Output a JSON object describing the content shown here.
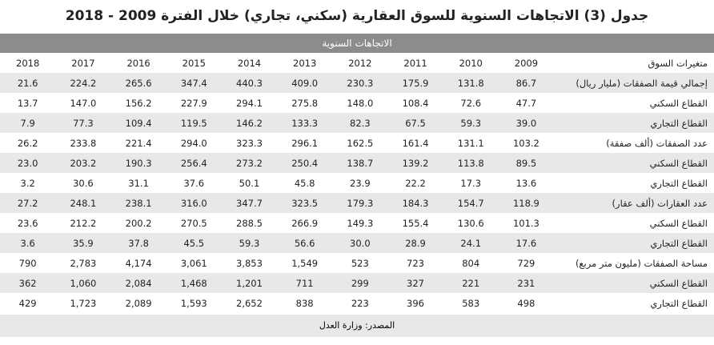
{
  "header": {
    "title": "جدول (3) الاتجاهات السنوية للسوق العقارية (سكني، تجاري) خلال الفترة 2009 - 2018",
    "band": "الاتجاهات السنوية"
  },
  "table": {
    "corner": "متغيرات السوق",
    "columns": [
      "2009",
      "2010",
      "2011",
      "2012",
      "2013",
      "2014",
      "2015",
      "2016",
      "2017",
      "2018"
    ],
    "rows": [
      {
        "label": "إجمالي قيمة الصفقات (مليار ريال)",
        "values": [
          "86.7",
          "131.8",
          "175.9",
          "230.3",
          "409.0",
          "440.3",
          "347.4",
          "265.6",
          "224.2",
          "21.6"
        ]
      },
      {
        "label": "القطاع السكني",
        "values": [
          "47.7",
          "72.6",
          "108.4",
          "148.0",
          "275.8",
          "294.1",
          "227.9",
          "156.2",
          "147.0",
          "13.7"
        ]
      },
      {
        "label": "القطاع التجاري",
        "values": [
          "39.0",
          "59.3",
          "67.5",
          "82.3",
          "133.3",
          "146.2",
          "119.5",
          "109.4",
          "77.3",
          "7.9"
        ]
      },
      {
        "label": "عدد الصفقات (ألف صفقة)",
        "values": [
          "103.2",
          "131.1",
          "161.4",
          "162.5",
          "296.1",
          "323.3",
          "294.0",
          "221.4",
          "233.8",
          "26.2"
        ]
      },
      {
        "label": "القطاع السكني",
        "values": [
          "89.5",
          "113.8",
          "139.2",
          "138.7",
          "250.4",
          "273.2",
          "256.4",
          "190.3",
          "203.2",
          "23.0"
        ]
      },
      {
        "label": "القطاع التجاري",
        "values": [
          "13.6",
          "17.3",
          "22.2",
          "23.9",
          "45.8",
          "50.1",
          "37.6",
          "31.1",
          "30.6",
          "3.2"
        ]
      },
      {
        "label": "عدد العقارات (ألف عقار)",
        "values": [
          "118.9",
          "154.7",
          "184.3",
          "179.3",
          "323.5",
          "347.7",
          "316.0",
          "238.1",
          "248.1",
          "27.2"
        ]
      },
      {
        "label": "القطاع السكني",
        "values": [
          "101.3",
          "130.6",
          "155.4",
          "149.3",
          "266.9",
          "288.5",
          "270.5",
          "200.2",
          "212.2",
          "23.6"
        ]
      },
      {
        "label": "القطاع التجاري",
        "values": [
          "17.6",
          "24.1",
          "28.9",
          "30.0",
          "56.6",
          "59.3",
          "45.5",
          "37.8",
          "35.9",
          "3.6"
        ]
      },
      {
        "label": "مساحة الصفقات (مليون متر مربع)",
        "values": [
          "729",
          "804",
          "723",
          "523",
          "1,549",
          "3,853",
          "3,061",
          "4,174",
          "2,783",
          "790"
        ]
      },
      {
        "label": "القطاع السكني",
        "values": [
          "231",
          "221",
          "327",
          "299",
          "711",
          "1,201",
          "1,468",
          "2,084",
          "1,060",
          "362"
        ]
      },
      {
        "label": "القطاع التجاري",
        "values": [
          "498",
          "583",
          "396",
          "223",
          "838",
          "2,652",
          "1,593",
          "2,089",
          "1,723",
          "429"
        ]
      }
    ]
  },
  "footer": {
    "source": "المصدر: وزارة العدل"
  }
}
